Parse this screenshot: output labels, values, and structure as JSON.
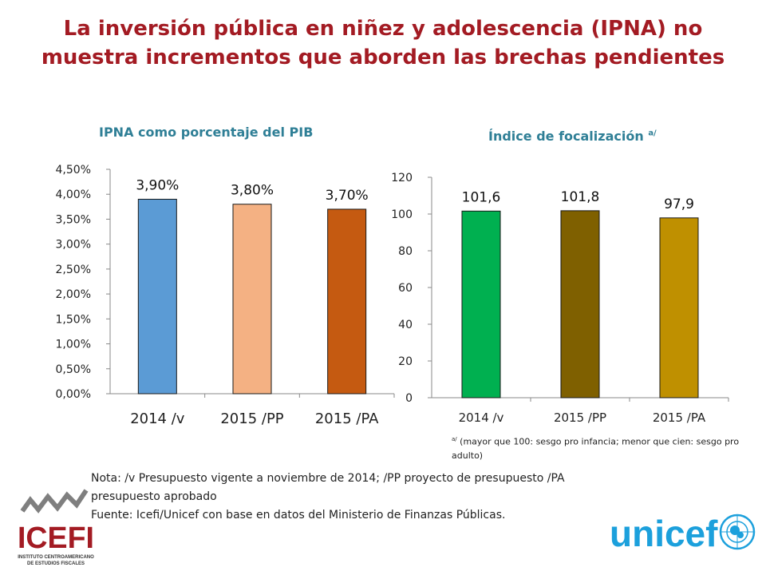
{
  "title": {
    "line1": "La inversión pública en niñez y adolescencia (IPNA) no",
    "line2": "muestra incrementos que aborden las brechas pendientes"
  },
  "colors": {
    "title": "#a31b23",
    "chart_title": "#2f7f96",
    "bar_2014_left": "#5b9bd5",
    "bar_2015pp_left": "#f4b183",
    "bar_2015pa_left": "#c55a11",
    "bar_2014_right": "#00b050",
    "bar_2015pp_right": "#7f6000",
    "bar_2015pa_right": "#bf9000",
    "unicef_blue": "#1ca0dc"
  },
  "chart_data": [
    {
      "type": "bar",
      "title": "IPNA como porcentaje del PIB",
      "categories": [
        "2014 /v",
        "2015 /PP",
        "2015 /PA"
      ],
      "values": [
        3.9,
        3.8,
        3.7
      ],
      "data_labels": [
        "3,90%",
        "3,80%",
        "3,70%"
      ],
      "yticks": [
        "0,00%",
        "0,50%",
        "1,00%",
        "1,50%",
        "2,00%",
        "2,50%",
        "3,00%",
        "3,50%",
        "4,00%",
        "4,50%"
      ],
      "ylim": [
        0,
        4.5
      ],
      "grid": false,
      "xlabel": "",
      "ylabel": ""
    },
    {
      "type": "bar",
      "title": "Índice de focalización",
      "title_superscript": "a/",
      "categories": [
        "2014 /v",
        "2015 /PP",
        "2015 /PA"
      ],
      "values": [
        101.6,
        101.8,
        97.9
      ],
      "data_labels": [
        "101,6",
        "101,8",
        "97,9"
      ],
      "yticks": [
        "0",
        "20",
        "40",
        "60",
        "80",
        "100",
        "120"
      ],
      "ylim": [
        0,
        120
      ],
      "grid": false,
      "xlabel": "",
      "ylabel": ""
    }
  ],
  "footnote": {
    "marker": "a/",
    "text": " (mayor que 100: sesgo pro infancia; menor que cien: sesgo pro adulto)"
  },
  "nota": {
    "line1": "Nota: /v Presupuesto vigente a noviembre de 2014; /PP proyecto de presupuesto /PA",
    "line2": "presupuesto aprobado",
    "line3": "Fuente: Icefi/Unicef con base en datos del Ministerio de Finanzas Públicas."
  },
  "logos": {
    "icefi_name": "ICEFI",
    "icefi_sub1": "INSTITUTO CENTROAMERICANO",
    "icefi_sub2": "DE ESTUDIOS FISCALES",
    "unicef_name": "unicef"
  }
}
